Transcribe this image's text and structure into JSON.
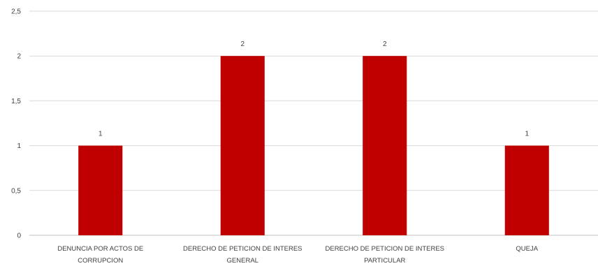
{
  "chart_data": {
    "type": "bar",
    "categories": [
      [
        "DENUNCIA POR ACTOS DE",
        "CORRUPCION"
      ],
      [
        "DERECHO DE PETICION DE INTERES",
        "GENERAL"
      ],
      [
        "DERECHO DE PETICION DE INTERES",
        "PARTICULAR"
      ],
      [
        "QUEJA"
      ]
    ],
    "values": [
      1,
      2,
      2,
      1
    ],
    "data_labels": [
      "1",
      "2",
      "2",
      "1"
    ],
    "yticks": [
      "0",
      "0,5",
      "1",
      "1,5",
      "2",
      "2,5"
    ],
    "ylim": [
      0,
      2.5
    ],
    "grid": true,
    "legend": "none",
    "colors": {
      "bar": "#C00000",
      "grid": "#D9D9D9",
      "axis": "#BFBFBF"
    }
  }
}
